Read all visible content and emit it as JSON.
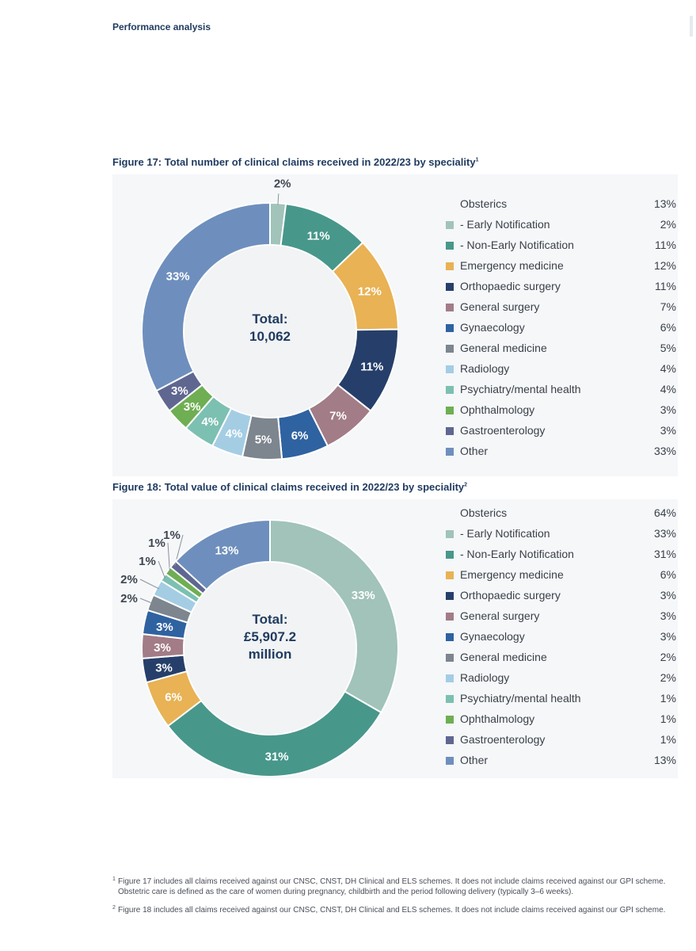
{
  "header": {
    "section": "Performance analysis"
  },
  "figures": [
    {
      "title": "Figure 17: Total number of clinical claims received in 2022/23 by speciality",
      "footnote_ref": "1",
      "center_text": [
        "Total:",
        "10,062"
      ]
    },
    {
      "title": "Figure 18: Total value of clinical claims received in 2022/23 by speciality",
      "footnote_ref": "2",
      "center_text": [
        "Total:",
        "£5,907.2",
        "million"
      ]
    }
  ],
  "legend_labels": [
    "Obsterics",
    "- Early Notification",
    "- Non-Early Notification",
    "Emergency medicine",
    "Orthopaedic surgery",
    "General surgery",
    "Gynaecology",
    "General medicine",
    "Radiology",
    "Psychiatry/mental health",
    "Ophthalmology",
    "Gastroenterology",
    "Other"
  ],
  "legend_colors": [
    null,
    "#a1c3b9",
    "#48978b",
    "#e8b255",
    "#263f6a",
    "#a27c87",
    "#2f62a0",
    "#7d858e",
    "#a4cde4",
    "#7cc0b2",
    "#6fae52",
    "#5f6791",
    "#6e8fbd"
  ],
  "chart_data": [
    {
      "type": "pie",
      "style": "donut",
      "title": "Figure 17: Total number of clinical claims received in 2022/23 by speciality",
      "total_label": "Total: 10,062",
      "categories": [
        "Early Notification",
        "Non-Early Notification",
        "Emergency medicine",
        "Orthopaedic surgery",
        "General surgery",
        "Gynaecology",
        "General medicine",
        "Radiology",
        "Psychiatry/mental health",
        "Ophthalmology",
        "Gastroenterology",
        "Other"
      ],
      "values": [
        2,
        11,
        12,
        11,
        7,
        6,
        5,
        4,
        4,
        3,
        3,
        33
      ],
      "labels": [
        "2%",
        "11%",
        "12%",
        "11%",
        "7%",
        "6%",
        "5%",
        "4%",
        "4%",
        "3%",
        "3%",
        "33%"
      ],
      "colors": [
        "#a1c3b9",
        "#48978b",
        "#e8b255",
        "#263f6a",
        "#a27c87",
        "#2f62a0",
        "#7d858e",
        "#a4cde4",
        "#7cc0b2",
        "#6fae52",
        "#5f6791",
        "#6e8fbd"
      ],
      "legend_values": [
        "13%",
        "2%",
        "11%",
        "12%",
        "11%",
        "7%",
        "6%",
        "5%",
        "4%",
        "4%",
        "3%",
        "3%",
        "33%"
      ],
      "legend_placement": "right"
    },
    {
      "type": "pie",
      "style": "donut",
      "title": "Figure 18: Total value of clinical claims received in 2022/23 by speciality",
      "total_label": "Total: £5,907.2 million",
      "categories": [
        "Early Notification",
        "Non-Early Notification",
        "Emergency medicine",
        "Orthopaedic surgery",
        "General surgery",
        "Gynaecology",
        "General medicine",
        "Radiology",
        "Psychiatry/mental health",
        "Ophthalmology",
        "Gastroenterology",
        "Other"
      ],
      "values": [
        33,
        31,
        6,
        3,
        3,
        3,
        2,
        2,
        1,
        1,
        1,
        13
      ],
      "labels": [
        "33%",
        "31%",
        "6%",
        "3%",
        "3%",
        "3%",
        "2%",
        "2%",
        "1%",
        "1%",
        "1%",
        "13%"
      ],
      "colors": [
        "#a1c3b9",
        "#48978b",
        "#e8b255",
        "#263f6a",
        "#a27c87",
        "#2f62a0",
        "#7d858e",
        "#a4cde4",
        "#7cc0b2",
        "#6fae52",
        "#5f6791",
        "#6e8fbd"
      ],
      "legend_values": [
        "64%",
        "33%",
        "31%",
        "6%",
        "3%",
        "3%",
        "3%",
        "2%",
        "2%",
        "1%",
        "1%",
        "1%",
        "13%"
      ],
      "legend_placement": "right"
    }
  ],
  "footnotes": [
    {
      "mark": "1",
      "text": "Figure 17 includes all claims received against our CNSC, CNST, DH Clinical and ELS schemes. It does not include claims received against our GPI scheme. Obstetric care is defined as the care of women during pregnancy, childbirth and the period following delivery (typically 3–6 weeks)."
    },
    {
      "mark": "2",
      "text": "Figure 18 includes all claims received against our CNSC, CNST, DH Clinical and ELS schemes. It does not include claims received against our GPI scheme."
    }
  ]
}
